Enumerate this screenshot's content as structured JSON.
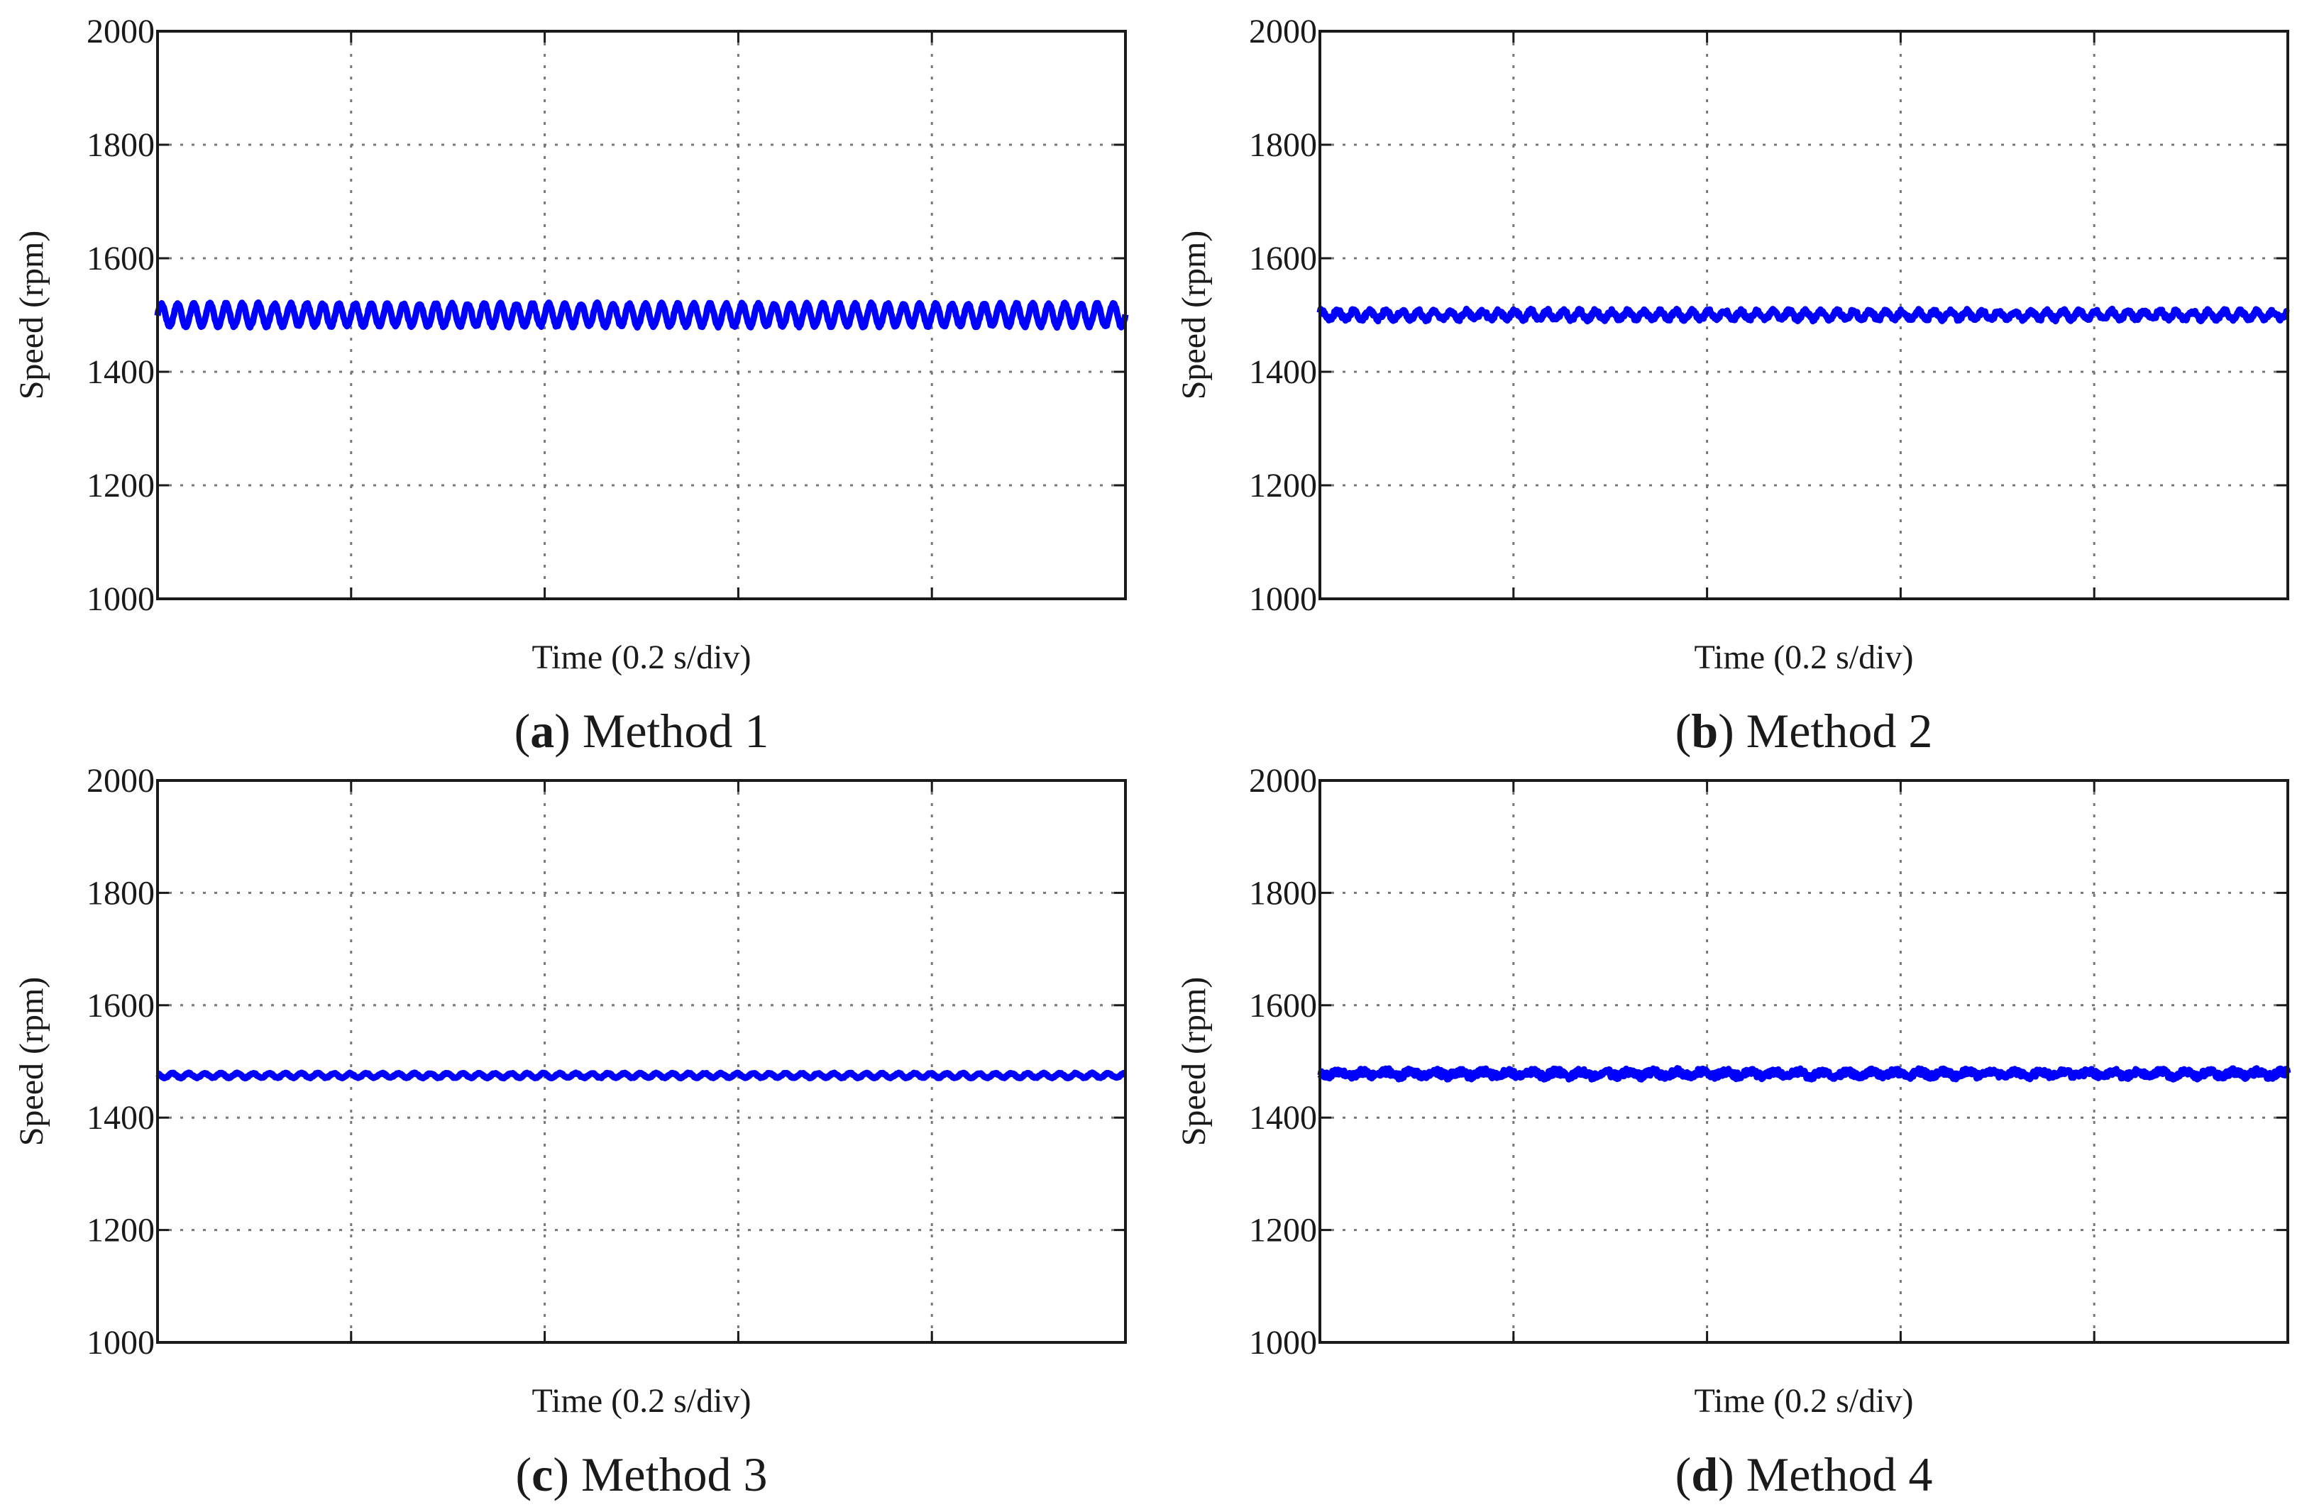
{
  "figure": {
    "trace_color": "#0000ff",
    "grid_color": "#777777",
    "axis_color": "#1a1a1a"
  },
  "chart_data": [
    {
      "type": "line",
      "panel": "a",
      "title": "Method 1",
      "xlabel": "Time (0.2 s/div)",
      "ylabel": "Speed (rpm)",
      "ylim": [
        1000,
        2000
      ],
      "yticks": [
        "1000",
        "1200",
        "1400",
        "1600",
        "1800",
        "2000"
      ],
      "x_divisions": 5,
      "grid": true,
      "series": [
        {
          "name": "speed",
          "mean": 1500,
          "ripple_amplitude": 20,
          "ripple_cycles": 60,
          "noise": 2
        }
      ]
    },
    {
      "type": "line",
      "panel": "b",
      "title": "Method 2",
      "xlabel": "Time (0.2 s/div)",
      "ylabel": "Speed (rpm)",
      "ylim": [
        1000,
        2000
      ],
      "yticks": [
        "1000",
        "1200",
        "1400",
        "1600",
        "1800",
        "2000"
      ],
      "x_divisions": 5,
      "grid": true,
      "series": [
        {
          "name": "speed",
          "mean": 1500,
          "ripple_amplitude": 7,
          "ripple_cycles": 60,
          "noise": 4
        }
      ]
    },
    {
      "type": "line",
      "panel": "c",
      "title": "Method 3",
      "xlabel": "Time (0.2 s/div)",
      "ylabel": "Speed (rpm)",
      "ylim": [
        1000,
        2000
      ],
      "yticks": [
        "1000",
        "1200",
        "1400",
        "1600",
        "1800",
        "2000"
      ],
      "x_divisions": 5,
      "grid": true,
      "series": [
        {
          "name": "speed",
          "mean": 1475,
          "ripple_amplitude": 4,
          "ripple_cycles": 60,
          "noise": 1
        }
      ]
    },
    {
      "type": "line",
      "panel": "d",
      "title": "Method 4",
      "xlabel": "Time (0.2 s/div)",
      "ylabel": "Speed (rpm)",
      "ylim": [
        1000,
        2000
      ],
      "yticks": [
        "1000",
        "1200",
        "1400",
        "1600",
        "1800",
        "2000"
      ],
      "x_divisions": 5,
      "grid": true,
      "series": [
        {
          "name": "speed",
          "mean": 1478,
          "ripple_amplitude": 4,
          "ripple_cycles": 40,
          "noise": 6
        }
      ]
    }
  ]
}
